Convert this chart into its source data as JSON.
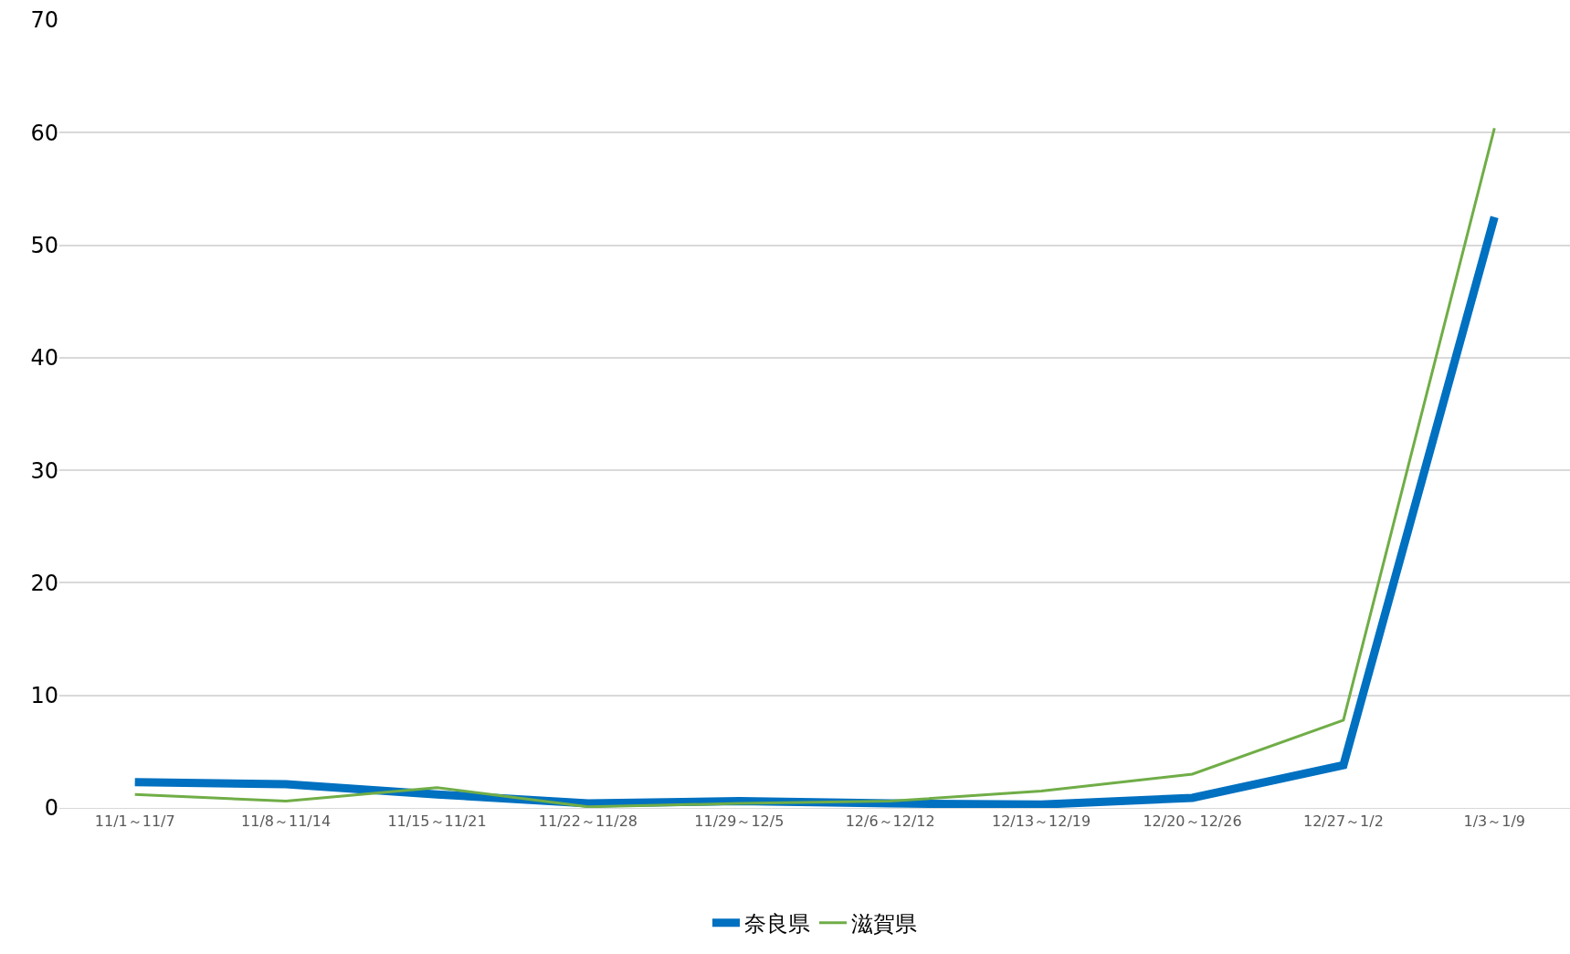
{
  "chart_data": {
    "type": "line",
    "categories": [
      "11/1～11/7",
      "11/8～11/14",
      "11/15～11/21",
      "11/22～11/28",
      "11/29～12/5",
      "12/6～12/12",
      "12/13～12/19",
      "12/20～12/26",
      "12/27～1/2",
      "1/3～1/9"
    ],
    "series": [
      {
        "name": "奈良県",
        "color": "#0070c0",
        "values": [
          2.3,
          2.1,
          1.2,
          0.4,
          0.6,
          0.4,
          0.3,
          0.9,
          3.8,
          52.5
        ]
      },
      {
        "name": "滋賀県",
        "color": "#70ad47",
        "values": [
          1.2,
          0.6,
          1.8,
          0.1,
          0.4,
          0.6,
          1.5,
          3.0,
          7.8,
          60.4
        ]
      }
    ],
    "ylim": [
      0,
      70
    ],
    "yticks": [
      0,
      10,
      20,
      30,
      40,
      50,
      60,
      70
    ],
    "grid": "y",
    "legend": "bottom",
    "marker": "none",
    "line_style": "solid"
  }
}
